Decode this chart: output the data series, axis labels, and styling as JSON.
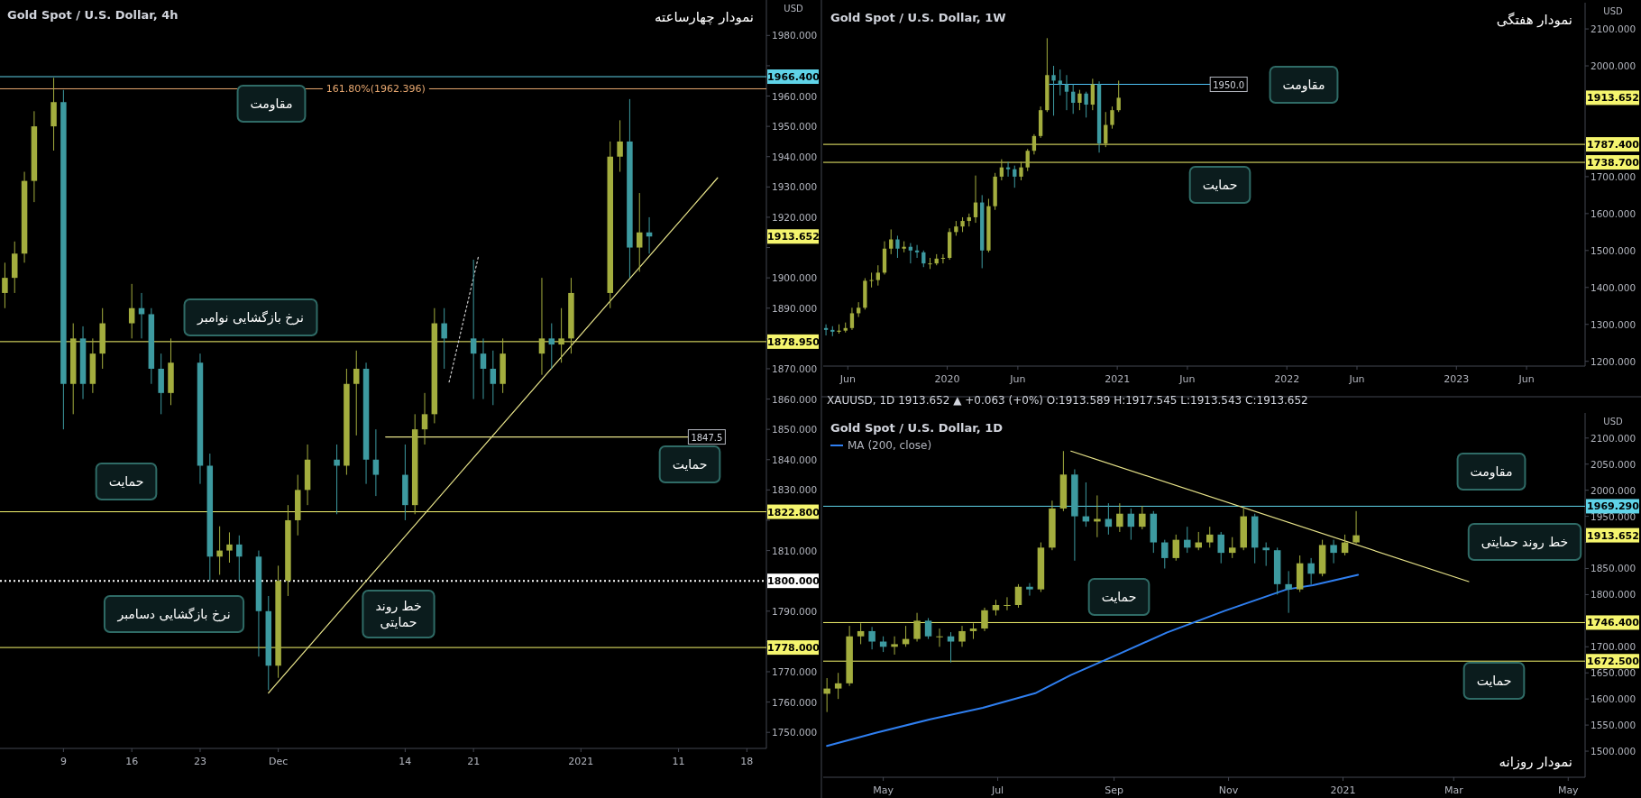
{
  "chart_data": [
    {
      "type": "candlestick",
      "title": "نمودار چهارساعته",
      "subtitle": "Gold Spot / U.S. Dollar, 4h",
      "ylabel": "USD",
      "xlim": [
        "2020-11-02T12:00",
        "2021-01-20"
      ],
      "ylim": [
        1744.7,
        1991.7
      ],
      "xticks": [
        {
          "value": "2020-11-09",
          "label": "9"
        },
        {
          "value": "2020-11-16",
          "label": "16"
        },
        {
          "value": "2020-11-23",
          "label": "23"
        },
        {
          "value": "2020-12-01",
          "label": "Dec"
        },
        {
          "value": "2020-12-14",
          "label": "14"
        },
        {
          "value": "2020-12-21",
          "label": "21"
        },
        {
          "value": "2021-01-01",
          "label": "2021"
        },
        {
          "value": "2021-01-11",
          "label": "11"
        },
        {
          "value": "2021-01-18",
          "label": "18"
        }
      ],
      "yticks": [
        {
          "value": 1750,
          "label": "1750.000"
        },
        {
          "value": 1760,
          "label": "1760.000"
        },
        {
          "value": 1770,
          "label": "1770.000"
        },
        {
          "value": 1780,
          "label": null
        },
        {
          "value": 1790,
          "label": "1790.000"
        },
        {
          "value": 1800,
          "label": null
        },
        {
          "value": 1810,
          "label": "1810.000"
        },
        {
          "value": 1820,
          "label": null
        },
        {
          "value": 1830,
          "label": "1830.000"
        },
        {
          "value": 1840,
          "label": "1840.000"
        },
        {
          "value": 1850,
          "label": "1850.000"
        },
        {
          "value": 1860,
          "label": "1860.000"
        },
        {
          "value": 1870,
          "label": "1870.000"
        },
        {
          "value": 1880,
          "label": null
        },
        {
          "value": 1890,
          "label": "1890.000"
        },
        {
          "value": 1900,
          "label": "1900.000"
        },
        {
          "value": 1910,
          "label": null
        },
        {
          "value": 1920,
          "label": "1920.000"
        },
        {
          "value": 1930,
          "label": "1930.000"
        },
        {
          "value": 1940,
          "label": "1940.000"
        },
        {
          "value": 1950,
          "label": "1950.000"
        },
        {
          "value": 1960,
          "label": "1960.000"
        },
        {
          "value": 1970,
          "label": null
        },
        {
          "value": 1980,
          "label": "1980.000"
        }
      ],
      "colors": [
        "#a3ad3e",
        "#a3ad3e",
        "#a3ad3e",
        "#a3ad3e",
        "#a3ad3e",
        "#3d9aa0",
        "#a3ad3e",
        "#3d9aa0",
        "#a3ad3e",
        "#a3ad3e",
        "#a3ad3e",
        "#3d9aa0",
        "#3d9aa0",
        "#3d9aa0",
        "#a3ad3e",
        "#3d9aa0",
        "#3d9aa0",
        "#a3ad3e",
        "#a3ad3e",
        "#3d9aa0",
        "#3d9aa0",
        "#3d9aa0",
        "#a3ad3e",
        "#a3ad3e",
        "#a3ad3e",
        "#a3ad3e",
        "#3d9aa0",
        "#a3ad3e",
        "#a3ad3e",
        "#3d9aa0",
        "#3d9aa0",
        "#3d9aa0",
        "#a3ad3e",
        "#a3ad3e",
        "#a3ad3e",
        "#3d9aa0",
        "#3d9aa0",
        "#3d9aa0",
        "#3d9aa0",
        "#a3ad3e",
        "#a3ad3e",
        "#3d9aa0",
        "#a3ad3e",
        "#a3ad3e",
        "#a3ad3e",
        "#a3ad3e",
        "#3d9aa0",
        "#a3ad3e",
        "#3d9aa0"
      ],
      "x": [
        "2020-11-03",
        "2020-11-04",
        "2020-11-05",
        "2020-11-06",
        "2020-11-08",
        "2020-11-09",
        "2020-11-10",
        "2020-11-11",
        "2020-11-12",
        "2020-11-13",
        "2020-11-16",
        "2020-11-17",
        "2020-11-18",
        "2020-11-19",
        "2020-11-20",
        "2020-11-23",
        "2020-11-24",
        "2020-11-25",
        "2020-11-26",
        "2020-11-27",
        "2020-11-29",
        "2020-11-30",
        "2020-12-01",
        "2020-12-02",
        "2020-12-03",
        "2020-12-04",
        "2020-12-07",
        "2020-12-08",
        "2020-12-09",
        "2020-12-10",
        "2020-12-11",
        "2020-12-14",
        "2020-12-15",
        "2020-12-16",
        "2020-12-17",
        "2020-12-18",
        "2020-12-21",
        "2020-12-22",
        "2020-12-23",
        "2020-12-24",
        "2020-12-28",
        "2020-12-29",
        "2020-12-30",
        "2020-12-31",
        "2021-01-04",
        "2021-01-05",
        "2021-01-06",
        "2021-01-07",
        "2021-01-08"
      ],
      "ohlc": [
        [
          1895,
          1905,
          1890,
          1900
        ],
        [
          1900,
          1912,
          1895,
          1908
        ],
        [
          1908,
          1935,
          1905,
          1932
        ],
        [
          1932,
          1955,
          1925,
          1950
        ],
        [
          1950,
          1966,
          1942,
          1958
        ],
        [
          1958,
          1962,
          1850,
          1865
        ],
        [
          1865,
          1885,
          1855,
          1880
        ],
        [
          1880,
          1884,
          1860,
          1865
        ],
        [
          1865,
          1880,
          1862,
          1875
        ],
        [
          1875,
          1890,
          1870,
          1885
        ],
        [
          1885,
          1898,
          1880,
          1890
        ],
        [
          1890,
          1895,
          1880,
          1888
        ],
        [
          1888,
          1890,
          1865,
          1870
        ],
        [
          1870,
          1875,
          1855,
          1862
        ],
        [
          1862,
          1880,
          1858,
          1872
        ],
        [
          1872,
          1875,
          1832,
          1838
        ],
        [
          1838,
          1842,
          1800,
          1808
        ],
        [
          1808,
          1818,
          1802,
          1810
        ],
        [
          1810,
          1816,
          1806,
          1812
        ],
        [
          1812,
          1815,
          1800,
          1808
        ],
        [
          1808,
          1810,
          1775,
          1790
        ],
        [
          1790,
          1795,
          1764,
          1772
        ],
        [
          1772,
          1805,
          1768,
          1800
        ],
        [
          1800,
          1825,
          1795,
          1820
        ],
        [
          1820,
          1835,
          1815,
          1830
        ],
        [
          1830,
          1845,
          1825,
          1840
        ],
        [
          1840,
          1845,
          1822,
          1838
        ],
        [
          1838,
          1870,
          1835,
          1865
        ],
        [
          1865,
          1876,
          1848,
          1870
        ],
        [
          1870,
          1872,
          1832,
          1840
        ],
        [
          1840,
          1850,
          1828,
          1835
        ],
        [
          1835,
          1845,
          1820,
          1825
        ],
        [
          1825,
          1855,
          1822,
          1850
        ],
        [
          1850,
          1862,
          1845,
          1855
        ],
        [
          1855,
          1890,
          1852,
          1885
        ],
        [
          1885,
          1890,
          1870,
          1880
        ],
        [
          1880,
          1906,
          1860,
          1875
        ],
        [
          1875,
          1880,
          1860,
          1870
        ],
        [
          1870,
          1876,
          1858,
          1865
        ],
        [
          1865,
          1880,
          1862,
          1875
        ],
        [
          1875,
          1900,
          1868,
          1880
        ],
        [
          1880,
          1885,
          1870,
          1878
        ],
        [
          1878,
          1890,
          1872,
          1880
        ],
        [
          1880,
          1900,
          1875,
          1895
        ],
        [
          1895,
          1945,
          1890,
          1940
        ],
        [
          1940,
          1952,
          1935,
          1945
        ],
        [
          1945,
          1959,
          1900,
          1910
        ],
        [
          1910,
          1928,
          1902,
          1915
        ],
        [
          1915,
          1920,
          1908,
          1913.652
        ]
      ],
      "series": [
        {
          "type": "line",
          "x": [
            "2020-11-30",
            "2021-01-15"
          ],
          "values": [
            1763,
            1933
          ],
          "color": "#e8e48a",
          "line_style": "solid"
        },
        {
          "type": "line",
          "x": [
            "2020-12-18T12:00",
            "2020-12-21T12:00"
          ],
          "values": [
            1865.6,
            1907
          ],
          "color": "#cccccc",
          "line_style": "dotted"
        },
        {
          "type": "line",
          "x": [
            "2020-12-12",
            "2021-01-12"
          ],
          "values": [
            1847.5,
            1847.5
          ],
          "color": "#e8e48a",
          "line_style": "solid",
          "value_labels": [
            null,
            "1847.5"
          ]
        }
      ],
      "ref_lines": [
        {
          "axis": "y",
          "value": 1966.4,
          "label": "1966.400",
          "color": "#5fd3e8",
          "line_style": "solid"
        },
        {
          "axis": "y",
          "value": 1962.396,
          "color": "#e8a870",
          "line_style": "solid"
        },
        {
          "axis": "y",
          "value": 1878.95,
          "label": "1878.950",
          "color": "#f5f56e",
          "line_style": "solid"
        },
        {
          "axis": "y",
          "value": 1822.8,
          "label": "1822.800",
          "color": "#f5f56e",
          "line_style": "solid"
        },
        {
          "axis": "y",
          "value": 1800,
          "label": "1800.000",
          "color": "#ffffff",
          "line_style": "dotted"
        },
        {
          "axis": "y",
          "value": 1778,
          "label": "1778.000",
          "color": "#f5f56e",
          "line_style": "solid"
        }
      ],
      "annotations": [
        "مقاومت",
        "نرخ بازگشایی نوامبر",
        "حمایت",
        "نرخ بازگشایی دسامبر",
        "خط روند\nحمایتی",
        "حمایت",
        {
          "text": "161.80%(1962.396)",
          "x": "2020-12-11",
          "y": 1962.396
        },
        "1913.652"
      ]
    },
    {
      "type": "candlestick",
      "title": "نمودار هفتگی",
      "subtitle": "Gold Spot / U.S. Dollar, 1W",
      "ylabel": "USD",
      "xlim": [
        "2019-04-09",
        "2023-10-05"
      ],
      "ylim": [
        1187,
        2171
      ],
      "xticks": [
        {
          "value": "2019-06-01",
          "label": "Jun"
        },
        {
          "value": "2020-01-01",
          "label": "2020"
        },
        {
          "value": "2020-06-01",
          "label": "Jun"
        },
        {
          "value": "2021-01-01",
          "label": "2021"
        },
        {
          "value": "2021-06-01",
          "label": "Jun"
        },
        {
          "value": "2022-01-01",
          "label": "2022"
        },
        {
          "value": "2022-06-01",
          "label": "Jun"
        },
        {
          "value": "2023-01-01",
          "label": "2023"
        },
        {
          "value": "2023-06-01",
          "label": "Jun"
        }
      ],
      "yticks": [
        {
          "value": 1200,
          "label": "1200.000"
        },
        {
          "value": 1300,
          "label": "1300.000"
        },
        {
          "value": 1400,
          "label": "1400.000"
        },
        {
          "value": 1500,
          "label": "1500.000"
        },
        {
          "value": 1600,
          "label": "1600.000"
        },
        {
          "value": 1700,
          "label": "1700.000"
        },
        {
          "value": 1800,
          "label": null
        },
        {
          "value": 1900,
          "label": null
        },
        {
          "value": 2000,
          "label": "2000.000"
        },
        {
          "value": 2100,
          "label": "2100.000"
        }
      ],
      "colors": [
        "#3d9aa0",
        "#3d9aa0",
        "#a3ad3e",
        "#a3ad3e",
        "#a3ad3e",
        "#a3ad3e",
        "#a3ad3e",
        "#a3ad3e",
        "#a3ad3e",
        "#a3ad3e",
        "#a3ad3e",
        "#3d9aa0",
        "#a3ad3e",
        "#3d9aa0",
        "#3d9aa0",
        "#3d9aa0",
        "#a3ad3e",
        "#a3ad3e",
        "#a3ad3e",
        "#a3ad3e",
        "#a3ad3e",
        "#a3ad3e",
        "#a3ad3e",
        "#a3ad3e",
        "#3d9aa0",
        "#a3ad3e",
        "#a3ad3e",
        "#a3ad3e",
        "#3d9aa0",
        "#3d9aa0",
        "#a3ad3e",
        "#a3ad3e",
        "#a3ad3e",
        "#a3ad3e",
        "#a3ad3e",
        "#3d9aa0",
        "#3d9aa0",
        "#3d9aa0",
        "#3d9aa0",
        "#a3ad3e",
        "#3d9aa0",
        "#a3ad3e",
        "#3d9aa0",
        "#a3ad3e",
        "#a3ad3e",
        "#a3ad3e"
      ],
      "x": [
        "2019-04-15",
        "2019-04-29",
        "2019-05-13",
        "2019-05-27",
        "2019-06-10",
        "2019-06-24",
        "2019-07-08",
        "2019-07-22",
        "2019-08-05",
        "2019-08-19",
        "2019-09-02",
        "2019-09-16",
        "2019-09-30",
        "2019-10-14",
        "2019-10-28",
        "2019-11-11",
        "2019-11-25",
        "2019-12-09",
        "2019-12-23",
        "2020-01-06",
        "2020-01-20",
        "2020-02-03",
        "2020-02-17",
        "2020-03-02",
        "2020-03-16",
        "2020-03-30",
        "2020-04-13",
        "2020-04-27",
        "2020-05-11",
        "2020-05-25",
        "2020-06-08",
        "2020-06-22",
        "2020-07-06",
        "2020-07-20",
        "2020-08-03",
        "2020-08-17",
        "2020-08-31",
        "2020-09-14",
        "2020-09-28",
        "2020-10-12",
        "2020-10-26",
        "2020-11-09",
        "2020-11-23",
        "2020-12-07",
        "2020-12-21",
        "2021-01-04"
      ],
      "ohlc": [
        [
          1290,
          1300,
          1270,
          1285
        ],
        [
          1285,
          1295,
          1268,
          1280
        ],
        [
          1280,
          1300,
          1275,
          1283
        ],
        [
          1283,
          1305,
          1278,
          1290
        ],
        [
          1290,
          1345,
          1285,
          1330
        ],
        [
          1330,
          1360,
          1320,
          1345
        ],
        [
          1345,
          1425,
          1340,
          1418
        ],
        [
          1418,
          1440,
          1400,
          1420
        ],
        [
          1420,
          1460,
          1405,
          1440
        ],
        [
          1440,
          1525,
          1435,
          1505
        ],
        [
          1505,
          1557,
          1490,
          1530
        ],
        [
          1530,
          1540,
          1480,
          1505
        ],
        [
          1505,
          1525,
          1495,
          1510
        ],
        [
          1510,
          1520,
          1465,
          1500
        ],
        [
          1500,
          1515,
          1480,
          1495
        ],
        [
          1495,
          1500,
          1455,
          1465
        ],
        [
          1465,
          1480,
          1450,
          1465
        ],
        [
          1465,
          1490,
          1460,
          1478
        ],
        [
          1478,
          1490,
          1465,
          1480
        ],
        [
          1480,
          1560,
          1475,
          1550
        ],
        [
          1550,
          1580,
          1540,
          1565
        ],
        [
          1565,
          1590,
          1550,
          1580
        ],
        [
          1580,
          1600,
          1565,
          1590
        ],
        [
          1590,
          1703,
          1575,
          1630
        ],
        [
          1630,
          1650,
          1452,
          1500
        ],
        [
          1500,
          1640,
          1495,
          1620
        ],
        [
          1620,
          1710,
          1610,
          1700
        ],
        [
          1700,
          1747,
          1690,
          1725
        ],
        [
          1725,
          1740,
          1700,
          1720
        ],
        [
          1720,
          1730,
          1670,
          1700
        ],
        [
          1700,
          1740,
          1690,
          1725
        ],
        [
          1725,
          1775,
          1715,
          1770
        ],
        [
          1770,
          1815,
          1760,
          1810
        ],
        [
          1810,
          1890,
          1805,
          1880
        ],
        [
          1880,
          2075,
          1875,
          1975
        ],
        [
          1975,
          2000,
          1865,
          1960
        ],
        [
          1960,
          1990,
          1920,
          1950
        ],
        [
          1950,
          1975,
          1880,
          1930
        ],
        [
          1930,
          1950,
          1870,
          1900
        ],
        [
          1900,
          1935,
          1880,
          1925
        ],
        [
          1925,
          1930,
          1860,
          1895
        ],
        [
          1895,
          1965,
          1880,
          1950
        ],
        [
          1950,
          1958,
          1765,
          1790
        ],
        [
          1790,
          1875,
          1780,
          1840
        ],
        [
          1840,
          1890,
          1830,
          1880
        ],
        [
          1880,
          1960,
          1875,
          1913.652
        ]
      ],
      "series": [
        {
          "type": "line",
          "x": [
            "2020-08-08",
            "2021-07-20"
          ],
          "values": [
            1950,
            1950
          ],
          "color": "#4fc3f7",
          "line_style": "solid",
          "value_labels": [
            null,
            "1950.0"
          ]
        }
      ],
      "ref_lines": [
        {
          "axis": "y",
          "value": 1787.4,
          "label": "1787.400",
          "color": "#f5f56e",
          "line_style": "solid"
        },
        {
          "axis": "y",
          "value": 1738.7,
          "label": "1738.700",
          "color": "#f5f56e",
          "line_style": "solid"
        }
      ],
      "annotations": [
        "مقاومت",
        "حمایت",
        "1913.652"
      ]
    },
    {
      "type": "candlestick",
      "title": "نمودار روزانه",
      "subtitle": "Gold Spot / U.S. Dollar, 1D",
      "ylabel": "USD",
      "legend": "top left",
      "xlim": [
        "2020-03-30",
        "2021-05-10"
      ],
      "ylim": [
        1450,
        2148
      ],
      "xticks": [
        {
          "value": "2020-05-01",
          "label": "May"
        },
        {
          "value": "2020-07-01",
          "label": "Jul"
        },
        {
          "value": "2020-09-01",
          "label": "Sep"
        },
        {
          "value": "2020-11-01",
          "label": "Nov"
        },
        {
          "value": "2021-01-01",
          "label": "2021"
        },
        {
          "value": "2021-03-01",
          "label": "Mar"
        },
        {
          "value": "2021-05-01",
          "label": "May"
        }
      ],
      "yticks": [
        {
          "value": 1500,
          "label": "1500.000"
        },
        {
          "value": 1550,
          "label": "1550.000"
        },
        {
          "value": 1600,
          "label": "1600.000"
        },
        {
          "value": 1650,
          "label": "1650.000"
        },
        {
          "value": 1700,
          "label": "1700.000"
        },
        {
          "value": 1750,
          "label": null
        },
        {
          "value": 1800,
          "label": "1800.000"
        },
        {
          "value": 1850,
          "label": "1850.000"
        },
        {
          "value": 1900,
          "label": null
        },
        {
          "value": 1950,
          "label": "1950.000"
        },
        {
          "value": 2000,
          "label": "2000.000"
        },
        {
          "value": 2050,
          "label": "2050.000"
        },
        {
          "value": 2100,
          "label": "2100.000"
        }
      ],
      "colors": [
        "#a3ad3e",
        "#a3ad3e",
        "#a3ad3e",
        "#a3ad3e",
        "#3d9aa0",
        "#3d9aa0",
        "#a3ad3e",
        "#a3ad3e",
        "#a3ad3e",
        "#3d9aa0",
        "#a3ad3e",
        "#3d9aa0",
        "#a3ad3e",
        "#a3ad3e",
        "#a3ad3e",
        "#a3ad3e",
        "#a3ad3e",
        "#a3ad3e",
        "#3d9aa0",
        "#a3ad3e",
        "#a3ad3e",
        "#a3ad3e",
        "#3d9aa0",
        "#3d9aa0",
        "#a3ad3e",
        "#3d9aa0",
        "#a3ad3e",
        "#3d9aa0",
        "#a3ad3e",
        "#3d9aa0",
        "#3d9aa0",
        "#a3ad3e",
        "#3d9aa0",
        "#a3ad3e",
        "#a3ad3e",
        "#3d9aa0",
        "#a3ad3e",
        "#a3ad3e",
        "#3d9aa0",
        "#3d9aa0",
        "#3d9aa0",
        "#3d9aa0",
        "#a3ad3e",
        "#3d9aa0",
        "#a3ad3e",
        "#3d9aa0",
        "#a3ad3e",
        "#a3ad3e"
      ],
      "x": [
        "2020-04-01",
        "2020-04-07",
        "2020-04-13",
        "2020-04-19",
        "2020-04-25",
        "2020-05-01",
        "2020-05-07",
        "2020-05-13",
        "2020-05-19",
        "2020-05-25",
        "2020-05-31",
        "2020-06-06",
        "2020-06-12",
        "2020-06-18",
        "2020-06-24",
        "2020-06-30",
        "2020-07-06",
        "2020-07-12",
        "2020-07-18",
        "2020-07-24",
        "2020-07-30",
        "2020-08-05",
        "2020-08-11",
        "2020-08-17",
        "2020-08-23",
        "2020-08-29",
        "2020-09-04",
        "2020-09-10",
        "2020-09-16",
        "2020-09-22",
        "2020-09-28",
        "2020-10-04",
        "2020-10-10",
        "2020-10-16",
        "2020-10-22",
        "2020-10-28",
        "2020-11-03",
        "2020-11-09",
        "2020-11-15",
        "2020-11-21",
        "2020-11-27",
        "2020-12-03",
        "2020-12-09",
        "2020-12-15",
        "2020-12-21",
        "2020-12-27",
        "2021-01-02",
        "2021-01-08"
      ],
      "ohlc": [
        [
          1610,
          1640,
          1575,
          1620
        ],
        [
          1620,
          1650,
          1600,
          1630
        ],
        [
          1630,
          1740,
          1625,
          1720
        ],
        [
          1720,
          1745,
          1705,
          1730
        ],
        [
          1730,
          1738,
          1695,
          1710
        ],
        [
          1710,
          1720,
          1690,
          1700
        ],
        [
          1700,
          1720,
          1685,
          1705
        ],
        [
          1705,
          1740,
          1700,
          1715
        ],
        [
          1715,
          1765,
          1710,
          1750
        ],
        [
          1750,
          1755,
          1715,
          1720
        ],
        [
          1720,
          1735,
          1700,
          1720
        ],
        [
          1720,
          1728,
          1670,
          1710
        ],
        [
          1710,
          1740,
          1700,
          1730
        ],
        [
          1730,
          1745,
          1715,
          1735
        ],
        [
          1735,
          1775,
          1730,
          1770
        ],
        [
          1770,
          1790,
          1760,
          1780
        ],
        [
          1780,
          1795,
          1770,
          1780
        ],
        [
          1780,
          1820,
          1775,
          1815
        ],
        [
          1815,
          1822,
          1798,
          1810
        ],
        [
          1810,
          1900,
          1805,
          1890
        ],
        [
          1890,
          1980,
          1885,
          1965
        ],
        [
          1965,
          2075,
          1960,
          2030
        ],
        [
          2030,
          2040,
          1865,
          1950
        ],
        [
          1950,
          2015,
          1930,
          1940
        ],
        [
          1940,
          1990,
          1910,
          1945
        ],
        [
          1945,
          1975,
          1915,
          1930
        ],
        [
          1930,
          1975,
          1920,
          1955
        ],
        [
          1955,
          1965,
          1905,
          1930
        ],
        [
          1930,
          1970,
          1925,
          1955
        ],
        [
          1955,
          1960,
          1880,
          1900
        ],
        [
          1900,
          1905,
          1850,
          1870
        ],
        [
          1870,
          1915,
          1865,
          1905
        ],
        [
          1905,
          1930,
          1880,
          1890
        ],
        [
          1890,
          1920,
          1885,
          1900
        ],
        [
          1900,
          1930,
          1890,
          1915
        ],
        [
          1915,
          1920,
          1860,
          1880
        ],
        [
          1880,
          1910,
          1870,
          1890
        ],
        [
          1890,
          1965,
          1885,
          1950
        ],
        [
          1950,
          1955,
          1860,
          1890
        ],
        [
          1890,
          1900,
          1855,
          1885
        ],
        [
          1885,
          1890,
          1800,
          1820
        ],
        [
          1820,
          1845,
          1765,
          1810
        ],
        [
          1810,
          1875,
          1805,
          1860
        ],
        [
          1860,
          1870,
          1820,
          1840
        ],
        [
          1840,
          1905,
          1835,
          1895
        ],
        [
          1895,
          1905,
          1860,
          1880
        ],
        [
          1880,
          1915,
          1875,
          1900
        ],
        [
          1900,
          1960,
          1898,
          1913.652
        ]
      ],
      "series": [
        {
          "type": "line",
          "name": "MA (200, close)",
          "x": [
            "2020-04-01",
            "2020-04-27",
            "2020-05-26",
            "2020-06-23",
            "2020-07-21",
            "2020-08-09",
            "2020-09-04",
            "2020-09-29",
            "2020-10-30",
            "2020-12-02",
            "2020-12-16",
            "2021-01-09"
          ],
          "values": [
            1510,
            1535,
            1561,
            1583,
            1611,
            1646,
            1687,
            1727,
            1769,
            1810,
            1818,
            1838
          ],
          "color": "#2f7ff0",
          "line_style": "solid"
        },
        {
          "type": "line",
          "x": [
            "2020-08-09",
            "2021-03-09"
          ],
          "values": [
            2075,
            1825
          ],
          "color": "#e8e48a",
          "line_style": "solid"
        }
      ],
      "ref_lines": [
        {
          "axis": "y",
          "value": 1969.29,
          "label": "1969.290",
          "color": "#5fd3e8",
          "line_style": "solid"
        },
        {
          "axis": "y",
          "value": 1746.4,
          "label": "1746.400",
          "color": "#f5f56e",
          "line_style": "solid"
        },
        {
          "axis": "y",
          "value": 1672.5,
          "label": "1672.500",
          "color": "#f5f56e",
          "line_style": "solid"
        }
      ],
      "annotations": [
        "XAUUSD, 1D  1913.652 ▲ +0.063 (+0%)  O:1913.589  H:1917.545  L:1913.543  C:1913.652",
        "مقاومت",
        "خط روند حمایتی",
        "حمایت",
        "حمایت",
        "1913.652"
      ]
    }
  ]
}
